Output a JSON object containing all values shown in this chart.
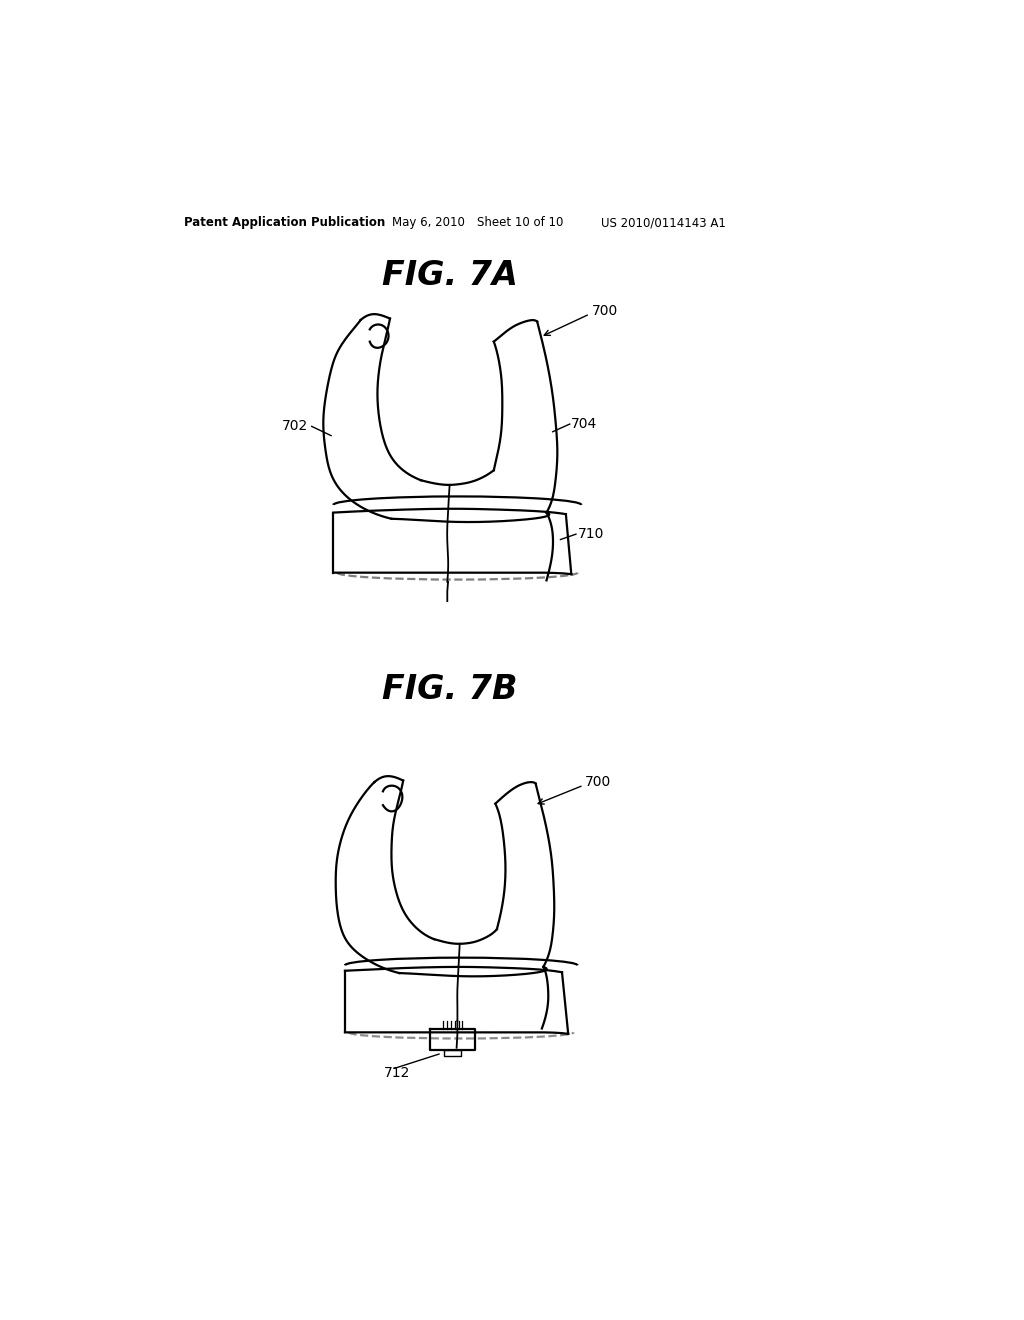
{
  "bg_color": "#ffffff",
  "header_text": "Patent Application Publication",
  "header_date": "May 6, 2010",
  "header_sheet": "Sheet 10 of 10",
  "header_patent": "US 2010/0114143 A1",
  "fig7a_title": "FIG. 7A",
  "fig7b_title": "FIG. 7B",
  "label_700a": "700",
  "label_702": "702",
  "label_704": "704",
  "label_710": "710",
  "label_700b": "700",
  "label_712": "712"
}
